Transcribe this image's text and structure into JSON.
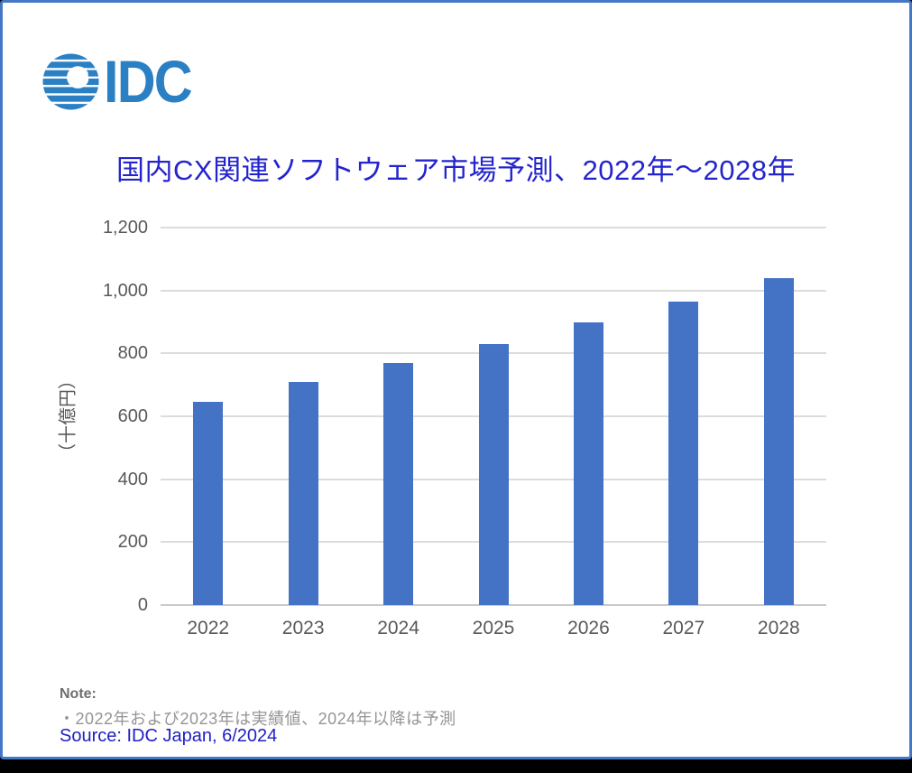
{
  "logo": {
    "text": "IDC",
    "color": "#2B80C4"
  },
  "title": {
    "text": "国内CX関連ソフトウェア市場予測、2022年～2028年",
    "color": "#2424CE"
  },
  "chart_data": {
    "type": "bar",
    "title": "国内CX関連ソフトウェア市場予測、2022年～2028年",
    "categories": [
      "2022",
      "2023",
      "2024",
      "2025",
      "2026",
      "2027",
      "2028"
    ],
    "values": [
      645,
      710,
      770,
      830,
      900,
      965,
      1040
    ],
    "unit": "十億円",
    "xlabel": "",
    "ylabel": "（十億円）",
    "ylim": [
      0,
      1200
    ],
    "ytick_step": 200,
    "ytick_labels": [
      "0",
      "200",
      "400",
      "600",
      "800",
      "1,000",
      "1,200"
    ],
    "bar_color": "#4472C4",
    "gridline_color": "#DCDCDC",
    "axis_line_color": "#C9C9C9",
    "tick_text_color": "#595959",
    "grid": true,
    "legend": "none"
  },
  "note": {
    "heading": "Note:",
    "line": "・2022年および2023年は実績値、2024年以降は予測"
  },
  "source": {
    "text": "Source: IDC Japan, 6/2024"
  }
}
